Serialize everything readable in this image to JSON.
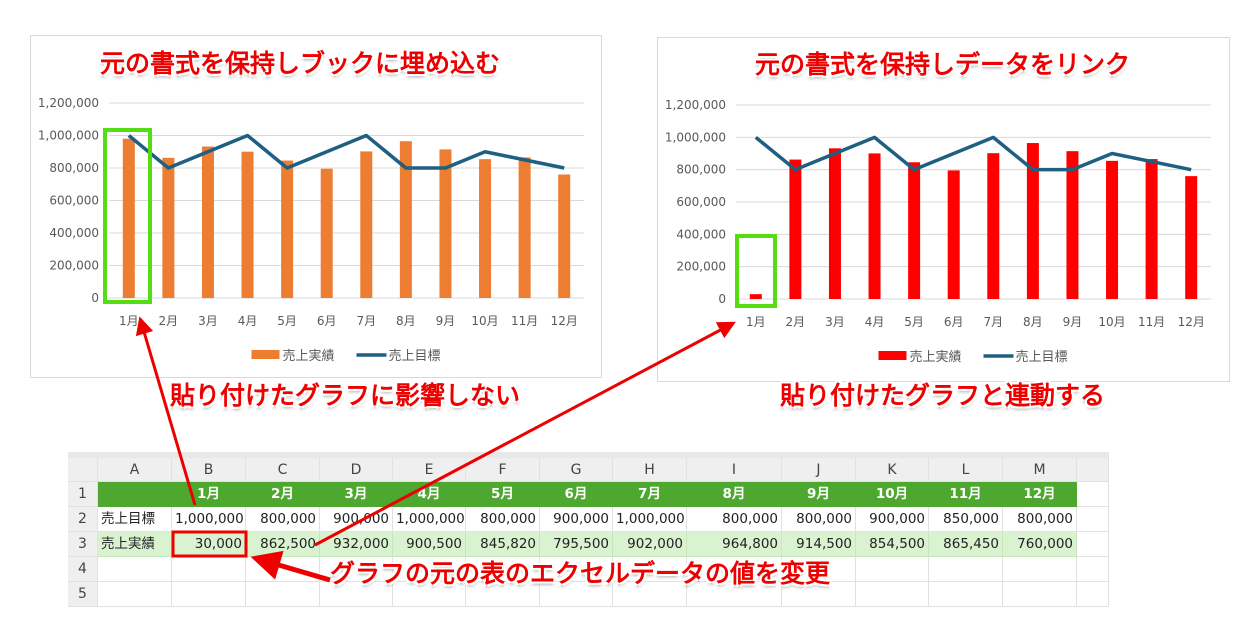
{
  "annotations": {
    "left_title": "元の書式を保持しブックに埋め込む",
    "right_title": "元の書式を保持しデータをリンク",
    "left_caption": "貼り付けたグラフに影響しない",
    "right_caption": "貼り付けたグラフと連動する",
    "sheet_caption": "グラフの元の表のエクセルデータの値を変更"
  },
  "colors": {
    "bar_left": "#ed7d31",
    "bar_right": "#ff0000",
    "line": "#1f5f82",
    "highlight": "#55dd11",
    "annotation": "#e00000",
    "header_fill": "#4ea72e",
    "row3_fill": "#d9f2d0"
  },
  "chart_data": [
    {
      "type": "bar+line",
      "categories": [
        "1月",
        "2月",
        "3月",
        "4月",
        "5月",
        "6月",
        "7月",
        "8月",
        "9月",
        "10月",
        "11月",
        "12月"
      ],
      "ylim": [
        0,
        1200000
      ],
      "yticks": [
        "0",
        "200,000",
        "400,000",
        "600,000",
        "800,000",
        "1,000,000",
        "1,200,000"
      ],
      "grid": true,
      "legend": "bottom",
      "series": [
        {
          "name": "売上実績",
          "type": "bar",
          "values": [
            980000,
            862500,
            932000,
            900500,
            845820,
            795500,
            902000,
            964800,
            914500,
            854500,
            865450,
            760000
          ]
        },
        {
          "name": "売上目標",
          "type": "line",
          "values": [
            1000000,
            800000,
            900000,
            1000000,
            800000,
            900000,
            1000000,
            800000,
            800000,
            900000,
            850000,
            800000
          ]
        }
      ]
    },
    {
      "type": "bar+line",
      "categories": [
        "1月",
        "2月",
        "3月",
        "4月",
        "5月",
        "6月",
        "7月",
        "8月",
        "9月",
        "10月",
        "11月",
        "12月"
      ],
      "ylim": [
        0,
        1200000
      ],
      "yticks": [
        "0",
        "200,000",
        "400,000",
        "600,000",
        "800,000",
        "1,000,000",
        "1,200,000"
      ],
      "grid": true,
      "legend": "bottom",
      "series": [
        {
          "name": "売上実績",
          "type": "bar",
          "values": [
            30000,
            862500,
            932000,
            900500,
            845820,
            795500,
            902000,
            964800,
            914500,
            854500,
            865450,
            760000
          ]
        },
        {
          "name": "売上目標",
          "type": "line",
          "values": [
            1000000,
            800000,
            900000,
            1000000,
            800000,
            900000,
            1000000,
            800000,
            800000,
            900000,
            850000,
            800000
          ]
        }
      ]
    }
  ],
  "sheet": {
    "columns": [
      "A",
      "B",
      "C",
      "D",
      "E",
      "F",
      "G",
      "H",
      "I",
      "J",
      "K",
      "L",
      "M"
    ],
    "row_numbers": [
      "1",
      "2",
      "3",
      "4",
      "5"
    ],
    "rows": [
      [
        "",
        "1月",
        "2月",
        "3月",
        "4月",
        "5月",
        "6月",
        "7月",
        "8月",
        "9月",
        "10月",
        "11月",
        "12月"
      ],
      [
        "売上目標",
        "1,000,000",
        "800,000",
        "900,000",
        "1,000,000",
        "800,000",
        "900,000",
        "1,000,000",
        "800,000",
        "800,000",
        "900,000",
        "850,000",
        "800,000"
      ],
      [
        "売上実績",
        "30,000",
        "862,500",
        "932,000",
        "900,500",
        "845,820",
        "795,500",
        "902,000",
        "964,800",
        "914,500",
        "854,500",
        "865,450",
        "760,000"
      ]
    ]
  }
}
